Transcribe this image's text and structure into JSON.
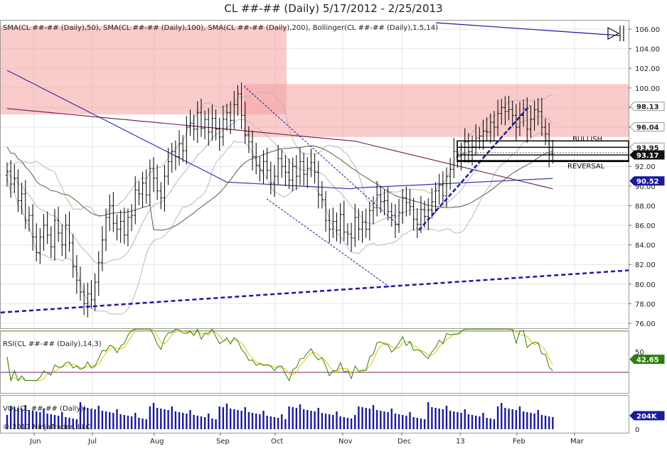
{
  "title": "CL ##-## (Daily)  5/17/2012 - 2/25/2013",
  "panels": {
    "price_label": "SMA(CL ##-## (Daily),50), SMA(CL ##-## (Daily),100), SMA(CL ##-## (Daily),200), Bollinger(CL ##-## (Daily),1.5,14)",
    "rsi_label": "RSI(CL ##-## (Daily),14,3)",
    "vol_label": "VOL(CL ##-## (Daily))",
    "copyright": "© 2013 NinjaTrader, LLC"
  },
  "annotations": {
    "bullish": "BULLISH",
    "reversal": "REVERSAL"
  },
  "colors": {
    "bar": "#000000",
    "zone": "#f6a0a0",
    "sma50": "#706a48",
    "sma100": "#2a2aa8",
    "sma200": "#6a1a4a",
    "bollinger": "#b8b8b8",
    "trend": "#1a1aa0",
    "rsi_line": "#2e7d12",
    "rsi_signal": "#e0c600",
    "volume": "#1a1a9a",
    "tag_blue": "#1a1a9a",
    "tag_green": "#2e7d12"
  },
  "chart_data": {
    "type": "ohlc",
    "x_tick_labels": [
      "Jun",
      "Jul",
      "Aug",
      "Sep",
      "Oct",
      "Nov",
      "Dec",
      "13",
      "Feb",
      "Mar"
    ],
    "price_axis": {
      "ylim": [
        75,
        106.5
      ],
      "ticks": [
        "76.00",
        "78.00",
        "80.00",
        "82.00",
        "84.00",
        "86.00",
        "88.00",
        "90.00",
        "92.00",
        "94.00",
        "96.00",
        "98.00",
        "100.00",
        "102.00",
        "104.00",
        "106.00"
      ]
    },
    "price_tags": [
      {
        "value": 98.13,
        "label": "98.13",
        "style": "grey"
      },
      {
        "value": 96.04,
        "label": "96.04",
        "style": "grey"
      },
      {
        "value": 93.95,
        "label": "93.95",
        "style": "grey"
      },
      {
        "value": 93.17,
        "label": "93.17",
        "style": "black"
      },
      {
        "value": 90.52,
        "label": "90.52",
        "style": "blue"
      }
    ],
    "closes": [
      91.5,
      90.2,
      90.8,
      88.5,
      89.2,
      86.5,
      87.0,
      84.8,
      83.2,
      84.8,
      86.0,
      85.0,
      83.8,
      86.5,
      85.2,
      84.0,
      86.0,
      84.2,
      81.8,
      80.4,
      79.2,
      78.0,
      79.0,
      78.4,
      80.2,
      82.2,
      84.5,
      86.8,
      88.0,
      86.2,
      85.6,
      86.4,
      85.0,
      86.8,
      87.0,
      89.6,
      89.2,
      90.3,
      89.1,
      91.8,
      90.8,
      89.5,
      88.8,
      91.0,
      92.5,
      93.5,
      93.0,
      94.3,
      93.6,
      96.0,
      96.4,
      95.8,
      97.5,
      95.9,
      96.8,
      95.5,
      96.9,
      95.8,
      95.0,
      96.8,
      97.5,
      96.7,
      98.3,
      99.4,
      97.2,
      95.2,
      94.5,
      93.0,
      92.1,
      91.6,
      92.5,
      91.6,
      90.3,
      91.0,
      92.8,
      92.0,
      91.4,
      90.6,
      92.0,
      91.0,
      92.5,
      91.2,
      91.8,
      92.4,
      91.4,
      89.1,
      88.6,
      86.5,
      85.6,
      86.4,
      85.5,
      87.1,
      85.3,
      85.1,
      84.7,
      86.8,
      85.6,
      86.3,
      85.6,
      87.5,
      87.8,
      89.1,
      88.4,
      88.5,
      87.4,
      87.0,
      86.1,
      87.3,
      88.8,
      88.3,
      87.9,
      86.6,
      86.1,
      87.6,
      86.9,
      87.6,
      88.4,
      89.5,
      90.1,
      89.0,
      91.0,
      91.7,
      93.5,
      93.0,
      93.3,
      94.5,
      93.5,
      94.0,
      94.9,
      95.1,
      95.6,
      95.5,
      96.5,
      96.0,
      97.4,
      98.0,
      97.6,
      97.8,
      97.2,
      96.0,
      97.2,
      97.9,
      95.8,
      96.8,
      97.8,
      97.6,
      96.0,
      95.3,
      93.3,
      93.2
    ],
    "indicators": {
      "sma50_approx": "daily close 50-period average",
      "sma100_approx": "daily close 100-period average",
      "sma200_approx": "daily close 200-period average"
    },
    "rsi": {
      "name": "RSI",
      "period": 14,
      "smooth": 3,
      "last": 42.65,
      "last_label": "42.65",
      "levels": [
        70,
        30
      ],
      "tick_label": "50"
    },
    "volume": {
      "last": "204K",
      "tick_label": "0"
    }
  }
}
